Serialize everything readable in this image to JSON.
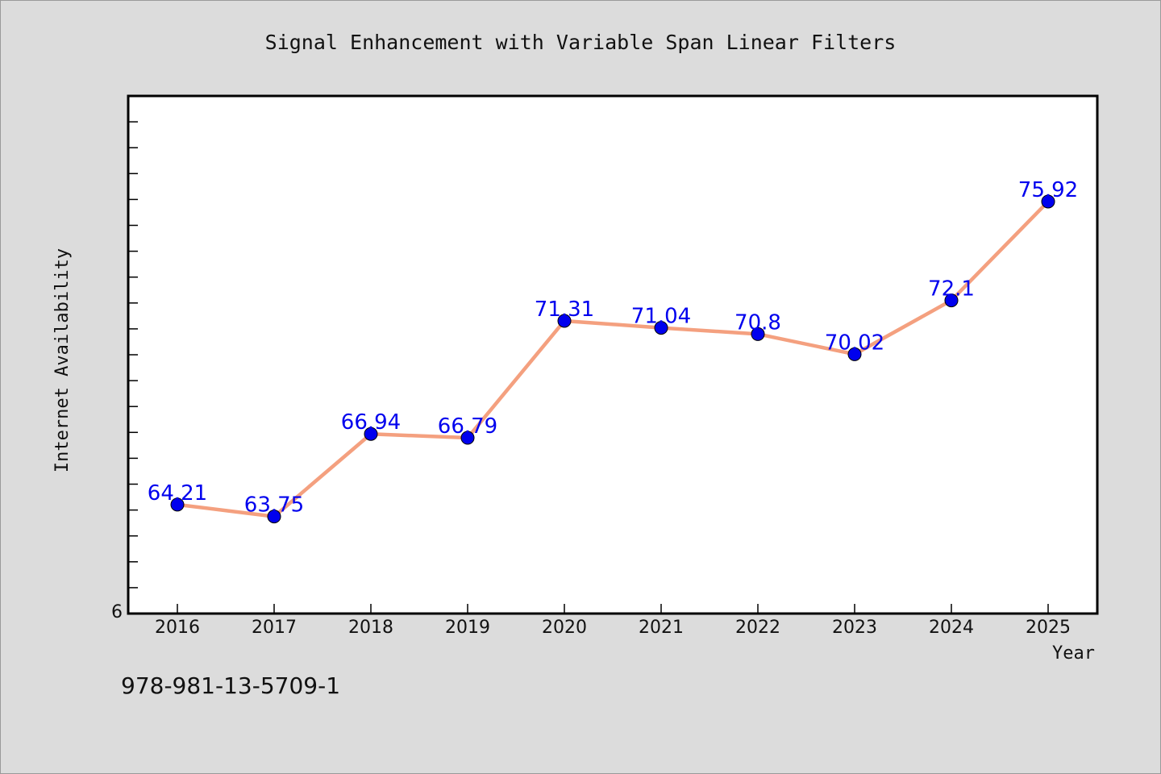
{
  "chart_data": {
    "type": "line",
    "title": "Signal Enhancement with Variable Span Linear Filters",
    "xlabel": "Year",
    "ylabel": "Internet Availability",
    "categories": [
      "2016",
      "2017",
      "2018",
      "2019",
      "2020",
      "2021",
      "2022",
      "2023",
      "2024",
      "2025"
    ],
    "series": [
      {
        "values": [
          64.21,
          63.75,
          66.94,
          66.79,
          71.31,
          71.04,
          70.8,
          70.02,
          72.1,
          75.92
        ],
        "labels": [
          "64.21",
          "63.75",
          "66.94",
          "66.79",
          "71.31",
          "71.04",
          "70.8",
          "70.02",
          "72.1",
          "75.92"
        ],
        "line_color": "#f4a07f",
        "marker_color": "#0000ee"
      }
    ],
    "ylim": [
      60,
      80
    ],
    "y_tick_labels": [
      "6"
    ],
    "grid": false,
    "legend": "none"
  },
  "footer": {
    "id_text": "978-981-13-5709-1"
  },
  "colors": {
    "background": "#dcdcdc",
    "plot_background": "#ffffff",
    "line": "#f4a07f",
    "marker": "#0000ee",
    "label": "#0000ee"
  }
}
